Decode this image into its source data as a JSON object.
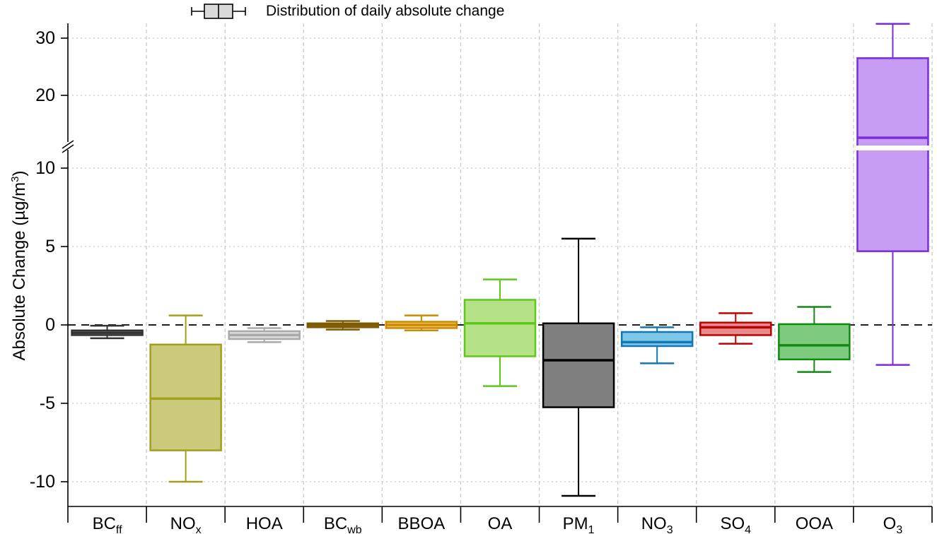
{
  "legend": {
    "label": "Distribution of daily absolute change",
    "glyph": "boxplot-icon",
    "glyph_fill": "#d9d9d9",
    "glyph_stroke": "#000000"
  },
  "y_axis": {
    "title_prefix": "Absolute Change (µg/m",
    "title_sup": "3",
    "title_suffix": ")"
  },
  "chart_data": {
    "type": "boxplot",
    "title": "Distribution of daily absolute change",
    "ylabel": "Absolute Change (µg/m³)",
    "yticks": [
      30,
      20,
      10,
      5,
      0,
      -5,
      -10
    ],
    "axis_break": {
      "between_ticks": [
        10,
        20
      ],
      "break_value": 11.75
    },
    "zero_line_value": 0,
    "grid": "dashed-light-gray",
    "legend_position": "top",
    "colors": {
      "zero_line": "#000000",
      "gridline": "#c9c9c9",
      "axis": "#000000"
    },
    "categories": [
      {
        "label": "BCff",
        "base": "BC",
        "sub": "ff"
      },
      {
        "label": "NOx",
        "base": "NO",
        "sub": "x"
      },
      {
        "label": "HOA",
        "base": "HOA",
        "sub": ""
      },
      {
        "label": "BCwb",
        "base": "BC",
        "sub": "wb"
      },
      {
        "label": "BBOA",
        "base": "BBOA",
        "sub": ""
      },
      {
        "label": "OA",
        "base": "OA",
        "sub": ""
      },
      {
        "label": "PM1",
        "base": "PM",
        "sub": "1"
      },
      {
        "label": "NO3",
        "base": "NO",
        "sub": "3"
      },
      {
        "label": "SO4",
        "base": "SO",
        "sub": "4"
      },
      {
        "label": "OOA",
        "base": "OOA",
        "sub": ""
      },
      {
        "label": "O3",
        "base": "O",
        "sub": "3"
      }
    ],
    "series": [
      {
        "name": "BCff",
        "whisker_low": -0.85,
        "q1": -0.65,
        "median": -0.5,
        "q3": -0.35,
        "whisker_high": -0.05,
        "fill": "#8f8f8f",
        "stroke": "#333333"
      },
      {
        "name": "NOx",
        "whisker_low": -10.0,
        "q1": -8.0,
        "median": -4.7,
        "q3": -1.25,
        "whisker_high": 0.6,
        "fill": "#cbca7c",
        "stroke": "#a19f1b"
      },
      {
        "name": "HOA",
        "whisker_low": -1.1,
        "q1": -0.9,
        "median": -0.65,
        "q3": -0.4,
        "whisker_high": -0.2,
        "fill": "#dcdcdc",
        "stroke": "#a9a9a9"
      },
      {
        "name": "BCwb",
        "whisker_low": -0.3,
        "q1": -0.15,
        "median": 0.0,
        "q3": 0.1,
        "whisker_high": 0.25,
        "fill": "#a87708",
        "stroke": "#7d5a00"
      },
      {
        "name": "BBOA",
        "whisker_low": -0.35,
        "q1": -0.2,
        "median": 0.0,
        "q3": 0.2,
        "whisker_high": 0.6,
        "fill": "#ecc269",
        "stroke": "#cc8a00"
      },
      {
        "name": "OA",
        "whisker_low": -3.9,
        "q1": -2.0,
        "median": 0.1,
        "q3": 1.6,
        "whisker_high": 2.9,
        "fill": "#b5e287",
        "stroke": "#5fc71c"
      },
      {
        "name": "PM1",
        "whisker_low": -10.9,
        "q1": -5.25,
        "median": -2.25,
        "q3": 0.1,
        "whisker_high": 5.5,
        "fill": "#7f7f7f",
        "stroke": "#000000"
      },
      {
        "name": "NO3",
        "whisker_low": -2.45,
        "q1": -1.35,
        "median": -1.1,
        "q3": -0.45,
        "whisker_high": -0.15,
        "fill": "#7ec7e8",
        "stroke": "#1477b4"
      },
      {
        "name": "SO4",
        "whisker_low": -1.2,
        "q1": -0.65,
        "median": -0.15,
        "q3": 0.15,
        "whisker_high": 0.75,
        "fill": "#e28c8c",
        "stroke": "#bf0000"
      },
      {
        "name": "OOA",
        "whisker_low": -3.0,
        "q1": -2.2,
        "median": -1.3,
        "q3": 0.05,
        "whisker_high": 1.15,
        "fill": "#7eca7e",
        "stroke": "#128a12"
      },
      {
        "name": "O3",
        "whisker_low": -2.55,
        "q1": 4.7,
        "median": 12.6,
        "q3": 26.5,
        "whisker_high": 32.5,
        "fill": "#c69df2",
        "stroke": "#7b2be0"
      }
    ]
  }
}
